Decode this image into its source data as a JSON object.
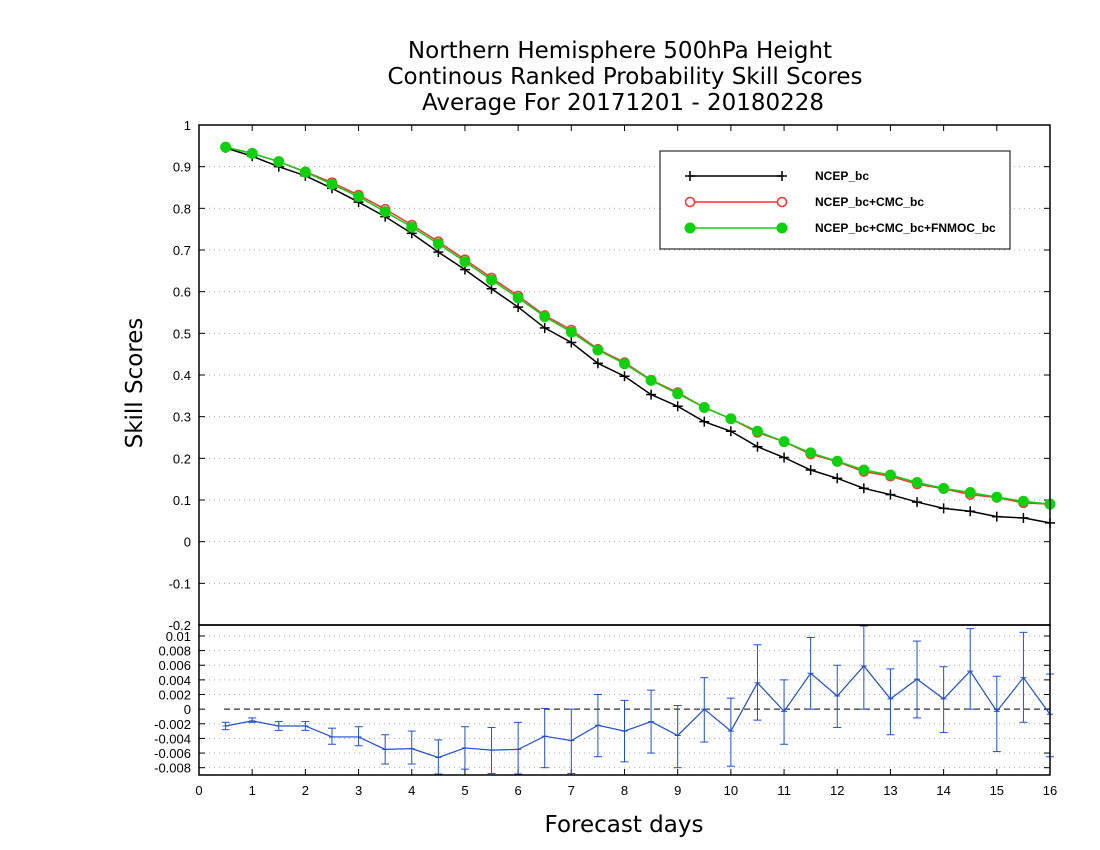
{
  "chart_data": {
    "title_lines": [
      "Northern Hemisphere 500hPa Height",
      "Continous Ranked Probability Skill Scores",
      "Average For 20171201 - 20180228"
    ],
    "xlabel": "Forecast days",
    "ylabel": "Skill Scores",
    "top_panel": {
      "type": "line",
      "xlim": [
        0,
        16
      ],
      "ylim": [
        -0.2,
        1
      ],
      "yticks": [
        -0.2,
        -0.1,
        0,
        0.1,
        0.2,
        0.3,
        0.4,
        0.5,
        0.6,
        0.7,
        0.8,
        0.9,
        1
      ],
      "ytick_labels": [
        "-0.2",
        "-0.1",
        "0",
        "0.1",
        "0.2",
        "0.3",
        "0.4",
        "0.5",
        "0.6",
        "0.7",
        "0.8",
        "0.9",
        "1"
      ],
      "grid": true,
      "legend_position": "top-right",
      "x": [
        0.5,
        1,
        1.5,
        2,
        2.5,
        3,
        3.5,
        4,
        4.5,
        5,
        5.5,
        6,
        6.5,
        7,
        7.5,
        8,
        8.5,
        9,
        9.5,
        10,
        10.5,
        11,
        11.5,
        12,
        12.5,
        13,
        13.5,
        14,
        14.5,
        15,
        15.5,
        16
      ],
      "series": [
        {
          "name": "NCEP_bc",
          "color": "#000000",
          "marker": "plus",
          "values": [
            0.945,
            0.925,
            0.9,
            0.878,
            0.848,
            0.815,
            0.78,
            0.74,
            0.695,
            0.653,
            0.607,
            0.563,
            0.513,
            0.478,
            0.428,
            0.397,
            0.353,
            0.325,
            0.288,
            0.265,
            0.228,
            0.202,
            0.172,
            0.152,
            0.128,
            0.113,
            0.095,
            0.08,
            0.073,
            0.06,
            0.057,
            0.045
          ]
        },
        {
          "name": "NCEP_bc+CMC_bc",
          "color": "#ff3030",
          "marker": "open-circle",
          "values": [
            0.947,
            0.932,
            0.912,
            0.888,
            0.862,
            0.832,
            0.798,
            0.76,
            0.72,
            0.677,
            0.633,
            0.59,
            0.543,
            0.508,
            0.462,
            0.43,
            0.388,
            0.358,
            0.322,
            0.295,
            0.262,
            0.24,
            0.21,
            0.192,
            0.168,
            0.157,
            0.138,
            0.127,
            0.113,
            0.106,
            0.093,
            0.09
          ]
        },
        {
          "name": "NCEP_bc+CMC_bc+FNMOC_bc",
          "color": "#10d010",
          "marker": "filled-circle",
          "values": [
            0.947,
            0.932,
            0.912,
            0.887,
            0.858,
            0.828,
            0.792,
            0.755,
            0.715,
            0.672,
            0.628,
            0.585,
            0.54,
            0.503,
            0.46,
            0.427,
            0.387,
            0.355,
            0.322,
            0.295,
            0.265,
            0.24,
            0.213,
            0.193,
            0.172,
            0.16,
            0.142,
            0.128,
            0.118,
            0.107,
            0.097,
            0.09
          ]
        }
      ]
    },
    "bottom_panel": {
      "type": "line",
      "xlim": [
        0,
        16
      ],
      "ylim": [
        -0.009,
        0.0115
      ],
      "yticks": [
        -0.008,
        -0.006,
        -0.004,
        -0.002,
        0,
        0.002,
        0.004,
        0.006,
        0.008,
        0.01
      ],
      "ytick_labels": [
        "-0.008",
        "-0.006",
        "-0.004",
        "-0.002",
        "0",
        "0.002",
        "0.004",
        "0.006",
        "0.008",
        "0.01"
      ],
      "grid": true,
      "reference_line": 0,
      "color": "#2050d0",
      "x": [
        0.5,
        1,
        1.5,
        2,
        2.5,
        3,
        3.5,
        4,
        4.5,
        5,
        5.5,
        6,
        6.5,
        7,
        7.5,
        8,
        8.5,
        9,
        9.5,
        10,
        10.5,
        11,
        11.5,
        12,
        12.5,
        13,
        13.5,
        14,
        14.5,
        15,
        15.5,
        16
      ],
      "values": [
        -0.0023,
        -0.0016,
        -0.0023,
        -0.0023,
        -0.0038,
        -0.0038,
        -0.0055,
        -0.0054,
        -0.0066,
        -0.0053,
        -0.0056,
        -0.0055,
        -0.0037,
        -0.0043,
        -0.0022,
        -0.003,
        -0.0017,
        -0.0036,
        0.0,
        -0.003,
        0.0036,
        -0.0003,
        0.0049,
        0.0018,
        0.0059,
        0.0014,
        0.0041,
        0.0014,
        0.0052,
        -0.0003,
        0.0043,
        -0.0007
      ],
      "err_low": [
        -0.0028,
        -0.0018,
        -0.0029,
        -0.0029,
        -0.0048,
        -0.005,
        -0.0075,
        -0.0075,
        -0.009,
        -0.0082,
        -0.0088,
        -0.009,
        -0.008,
        -0.0088,
        -0.0065,
        -0.0072,
        -0.006,
        -0.008,
        -0.0045,
        -0.0078,
        -0.0015,
        -0.0048,
        0.0,
        -0.0025,
        0.0,
        -0.0035,
        -0.0012,
        -0.0032,
        0.0,
        -0.0058,
        -0.0018,
        -0.0065
      ],
      "err_high": [
        -0.0018,
        -0.0012,
        -0.0017,
        -0.0017,
        -0.0026,
        -0.0024,
        -0.0035,
        -0.003,
        -0.0042,
        -0.0024,
        -0.0025,
        -0.0018,
        0.0001,
        0.0,
        0.002,
        0.0012,
        0.0026,
        0.0005,
        0.0043,
        0.0015,
        0.0088,
        0.004,
        0.0098,
        0.006,
        0.0115,
        0.0055,
        0.0093,
        0.0058,
        0.011,
        0.0045,
        0.0105,
        0.0048
      ]
    },
    "xticks": [
      0,
      1,
      2,
      3,
      4,
      5,
      6,
      7,
      8,
      9,
      10,
      11,
      12,
      13,
      14,
      15,
      16
    ],
    "xtick_labels": [
      "0",
      "1",
      "2",
      "3",
      "4",
      "5",
      "6",
      "7",
      "8",
      "9",
      "10",
      "11",
      "12",
      "13",
      "14",
      "15",
      "16"
    ]
  }
}
